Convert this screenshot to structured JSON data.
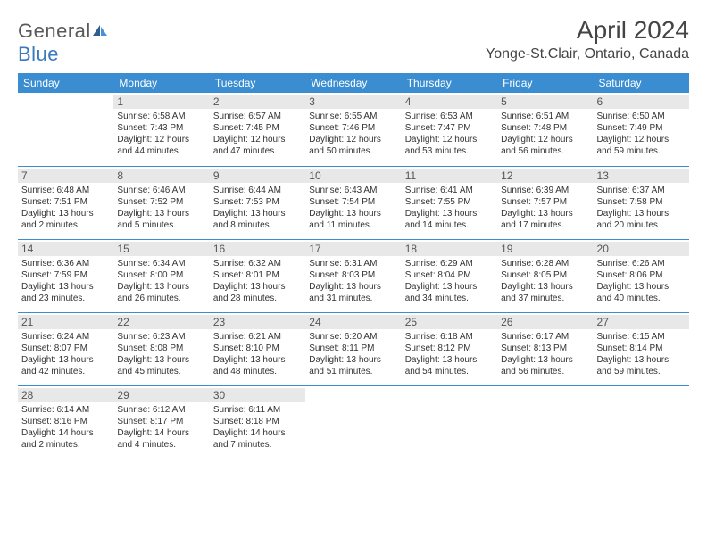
{
  "brand": {
    "part1": "General",
    "part2": "Blue"
  },
  "title": "April 2024",
  "location": "Yonge-St.Clair, Ontario, Canada",
  "colors": {
    "header_bg": "#3a8dd0",
    "header_text": "#ffffff",
    "daynum_bg": "#e8e8e8",
    "daynum_text": "#555555",
    "body_text": "#333333",
    "title_text": "#444444",
    "border": "#3a8dd0",
    "logo_gray": "#5a5a5a",
    "logo_blue": "#3a7abd"
  },
  "weekdays": [
    "Sunday",
    "Monday",
    "Tuesday",
    "Wednesday",
    "Thursday",
    "Friday",
    "Saturday"
  ],
  "weeks": [
    [
      null,
      {
        "n": "1",
        "sr": "Sunrise: 6:58 AM",
        "ss": "Sunset: 7:43 PM",
        "dl": "Daylight: 12 hours and 44 minutes."
      },
      {
        "n": "2",
        "sr": "Sunrise: 6:57 AM",
        "ss": "Sunset: 7:45 PM",
        "dl": "Daylight: 12 hours and 47 minutes."
      },
      {
        "n": "3",
        "sr": "Sunrise: 6:55 AM",
        "ss": "Sunset: 7:46 PM",
        "dl": "Daylight: 12 hours and 50 minutes."
      },
      {
        "n": "4",
        "sr": "Sunrise: 6:53 AM",
        "ss": "Sunset: 7:47 PM",
        "dl": "Daylight: 12 hours and 53 minutes."
      },
      {
        "n": "5",
        "sr": "Sunrise: 6:51 AM",
        "ss": "Sunset: 7:48 PM",
        "dl": "Daylight: 12 hours and 56 minutes."
      },
      {
        "n": "6",
        "sr": "Sunrise: 6:50 AM",
        "ss": "Sunset: 7:49 PM",
        "dl": "Daylight: 12 hours and 59 minutes."
      }
    ],
    [
      {
        "n": "7",
        "sr": "Sunrise: 6:48 AM",
        "ss": "Sunset: 7:51 PM",
        "dl": "Daylight: 13 hours and 2 minutes."
      },
      {
        "n": "8",
        "sr": "Sunrise: 6:46 AM",
        "ss": "Sunset: 7:52 PM",
        "dl": "Daylight: 13 hours and 5 minutes."
      },
      {
        "n": "9",
        "sr": "Sunrise: 6:44 AM",
        "ss": "Sunset: 7:53 PM",
        "dl": "Daylight: 13 hours and 8 minutes."
      },
      {
        "n": "10",
        "sr": "Sunrise: 6:43 AM",
        "ss": "Sunset: 7:54 PM",
        "dl": "Daylight: 13 hours and 11 minutes."
      },
      {
        "n": "11",
        "sr": "Sunrise: 6:41 AM",
        "ss": "Sunset: 7:55 PM",
        "dl": "Daylight: 13 hours and 14 minutes."
      },
      {
        "n": "12",
        "sr": "Sunrise: 6:39 AM",
        "ss": "Sunset: 7:57 PM",
        "dl": "Daylight: 13 hours and 17 minutes."
      },
      {
        "n": "13",
        "sr": "Sunrise: 6:37 AM",
        "ss": "Sunset: 7:58 PM",
        "dl": "Daylight: 13 hours and 20 minutes."
      }
    ],
    [
      {
        "n": "14",
        "sr": "Sunrise: 6:36 AM",
        "ss": "Sunset: 7:59 PM",
        "dl": "Daylight: 13 hours and 23 minutes."
      },
      {
        "n": "15",
        "sr": "Sunrise: 6:34 AM",
        "ss": "Sunset: 8:00 PM",
        "dl": "Daylight: 13 hours and 26 minutes."
      },
      {
        "n": "16",
        "sr": "Sunrise: 6:32 AM",
        "ss": "Sunset: 8:01 PM",
        "dl": "Daylight: 13 hours and 28 minutes."
      },
      {
        "n": "17",
        "sr": "Sunrise: 6:31 AM",
        "ss": "Sunset: 8:03 PM",
        "dl": "Daylight: 13 hours and 31 minutes."
      },
      {
        "n": "18",
        "sr": "Sunrise: 6:29 AM",
        "ss": "Sunset: 8:04 PM",
        "dl": "Daylight: 13 hours and 34 minutes."
      },
      {
        "n": "19",
        "sr": "Sunrise: 6:28 AM",
        "ss": "Sunset: 8:05 PM",
        "dl": "Daylight: 13 hours and 37 minutes."
      },
      {
        "n": "20",
        "sr": "Sunrise: 6:26 AM",
        "ss": "Sunset: 8:06 PM",
        "dl": "Daylight: 13 hours and 40 minutes."
      }
    ],
    [
      {
        "n": "21",
        "sr": "Sunrise: 6:24 AM",
        "ss": "Sunset: 8:07 PM",
        "dl": "Daylight: 13 hours and 42 minutes."
      },
      {
        "n": "22",
        "sr": "Sunrise: 6:23 AM",
        "ss": "Sunset: 8:08 PM",
        "dl": "Daylight: 13 hours and 45 minutes."
      },
      {
        "n": "23",
        "sr": "Sunrise: 6:21 AM",
        "ss": "Sunset: 8:10 PM",
        "dl": "Daylight: 13 hours and 48 minutes."
      },
      {
        "n": "24",
        "sr": "Sunrise: 6:20 AM",
        "ss": "Sunset: 8:11 PM",
        "dl": "Daylight: 13 hours and 51 minutes."
      },
      {
        "n": "25",
        "sr": "Sunrise: 6:18 AM",
        "ss": "Sunset: 8:12 PM",
        "dl": "Daylight: 13 hours and 54 minutes."
      },
      {
        "n": "26",
        "sr": "Sunrise: 6:17 AM",
        "ss": "Sunset: 8:13 PM",
        "dl": "Daylight: 13 hours and 56 minutes."
      },
      {
        "n": "27",
        "sr": "Sunrise: 6:15 AM",
        "ss": "Sunset: 8:14 PM",
        "dl": "Daylight: 13 hours and 59 minutes."
      }
    ],
    [
      {
        "n": "28",
        "sr": "Sunrise: 6:14 AM",
        "ss": "Sunset: 8:16 PM",
        "dl": "Daylight: 14 hours and 2 minutes."
      },
      {
        "n": "29",
        "sr": "Sunrise: 6:12 AM",
        "ss": "Sunset: 8:17 PM",
        "dl": "Daylight: 14 hours and 4 minutes."
      },
      {
        "n": "30",
        "sr": "Sunrise: 6:11 AM",
        "ss": "Sunset: 8:18 PM",
        "dl": "Daylight: 14 hours and 7 minutes."
      },
      null,
      null,
      null,
      null
    ]
  ]
}
